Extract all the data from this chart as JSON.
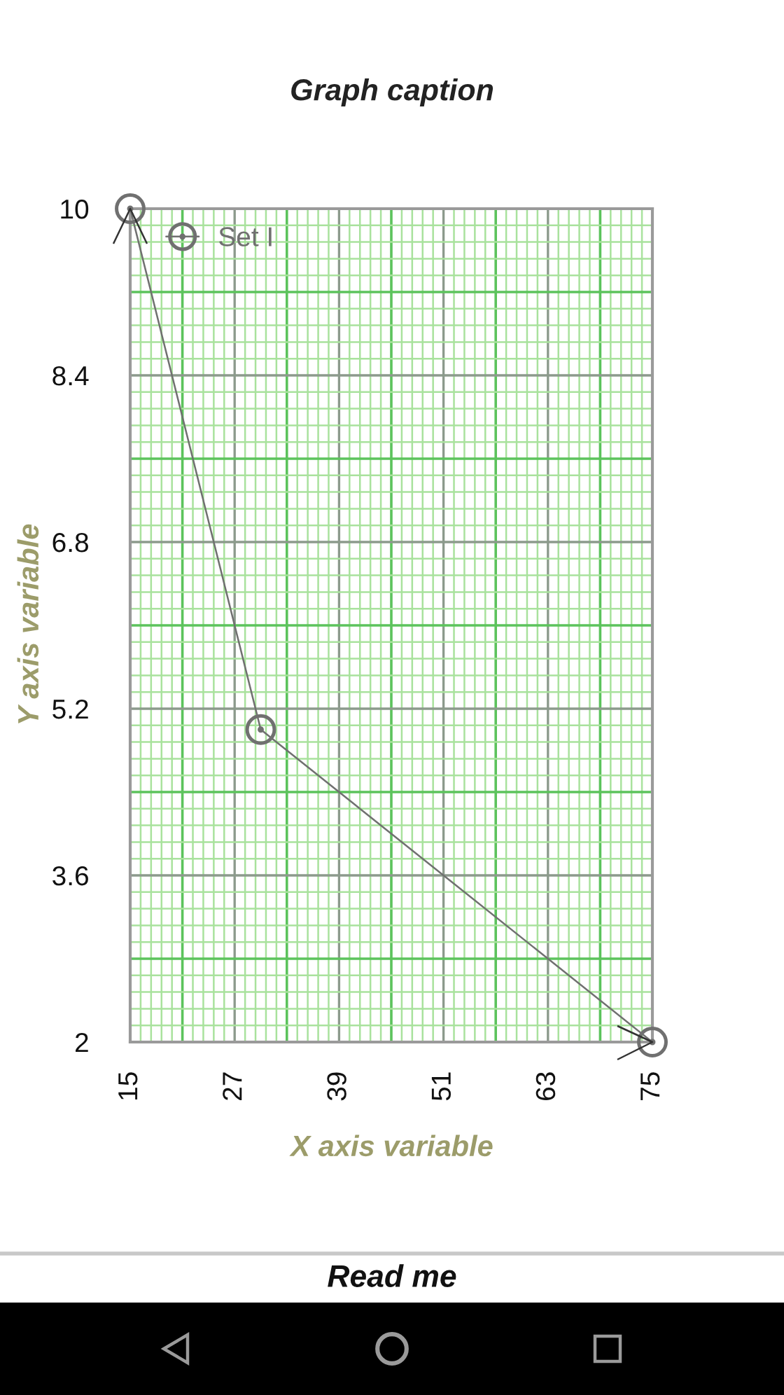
{
  "chart_data": {
    "type": "line",
    "title": "Graph caption",
    "xlabel": "X axis variable",
    "ylabel": "Y axis variable",
    "x": [
      15,
      30,
      75
    ],
    "series": [
      {
        "name": "Set I",
        "color": "#707070",
        "values": [
          10,
          5,
          2
        ]
      }
    ],
    "xlim": [
      15,
      75
    ],
    "ylim": [
      2,
      10
    ],
    "xticks": [
      15,
      {
        "value": 16.2,
        "label": null
      },
      {
        "value": 17.4,
        "label": null
      },
      {
        "value": 18.6,
        "label": null
      },
      {
        "value": 19.8,
        "label": null
      },
      {
        "value": 21,
        "label": null
      },
      {
        "value": 22.2,
        "label": null
      },
      {
        "value": 23.4,
        "label": null
      },
      {
        "value": 24.6,
        "label": null
      },
      {
        "value": 25.8,
        "label": null
      },
      27,
      {
        "value": 28.2,
        "label": null
      },
      {
        "value": 29.4,
        "label": null
      },
      {
        "value": 30.6,
        "label": null
      },
      {
        "value": 31.8,
        "label": null
      },
      {
        "value": 33,
        "label": null
      },
      {
        "value": 34.2,
        "label": null
      },
      {
        "value": 35.4,
        "label": null
      },
      {
        "value": 36.6,
        "label": null
      },
      {
        "value": 37.8,
        "label": null
      },
      39,
      {
        "value": 40.2,
        "label": null
      },
      {
        "value": 41.4,
        "label": null
      },
      {
        "value": 42.6,
        "label": null
      },
      {
        "value": 43.8,
        "label": null
      },
      {
        "value": 45,
        "label": null
      },
      {
        "value": 46.2,
        "label": null
      },
      {
        "value": 47.4,
        "label": null
      },
      {
        "value": 48.6,
        "label": null
      },
      {
        "value": 49.8,
        "label": null
      },
      51,
      {
        "value": 52.2,
        "label": null
      },
      {
        "value": 53.4,
        "label": null
      },
      {
        "value": 54.6,
        "label": null
      },
      {
        "value": 55.8,
        "label": null
      },
      {
        "value": 57,
        "label": null
      },
      {
        "value": 58.2,
        "label": null
      },
      {
        "value": 59.4,
        "label": null
      },
      {
        "value": 60.6,
        "label": null
      },
      {
        "value": 61.8,
        "label": null
      },
      63,
      {
        "value": 64.2,
        "label": null
      },
      {
        "value": 65.4,
        "label": null
      },
      {
        "value": 66.6,
        "label": null
      },
      {
        "value": 67.8,
        "label": null
      },
      {
        "value": 69,
        "label": null
      },
      {
        "value": 70.2,
        "label": null
      },
      {
        "value": 71.4,
        "label": null
      },
      {
        "value": 72.6,
        "label": null
      },
      {
        "value": 73.8,
        "label": null
      },
      75
    ],
    "yticks": [
      2,
      {
        "value": 2.16,
        "label": null
      },
      {
        "value": 2.32,
        "label": null
      },
      {
        "value": 2.48,
        "label": null
      },
      {
        "value": 2.64,
        "label": null
      },
      {
        "value": 2.8,
        "label": null
      },
      {
        "value": 2.96,
        "label": null
      },
      {
        "value": 3.12,
        "label": null
      },
      {
        "value": 3.28,
        "label": null
      },
      {
        "value": 3.44,
        "label": null
      },
      3.6,
      {
        "value": 3.76,
        "label": null
      },
      {
        "value": 3.92,
        "label": null
      },
      {
        "value": 4.08,
        "label": null
      },
      {
        "value": 4.24,
        "label": null
      },
      {
        "value": 4.4,
        "label": null
      },
      {
        "value": 4.56,
        "label": null
      },
      {
        "value": 4.72,
        "label": null
      },
      {
        "value": 4.88,
        "label": null
      },
      {
        "value": 5.04,
        "label": null
      },
      5.2,
      {
        "value": 5.36,
        "label": null
      },
      {
        "value": 5.52,
        "label": null
      },
      {
        "value": 5.68,
        "label": null
      },
      {
        "value": 5.84,
        "label": null
      },
      {
        "value": 6,
        "label": null
      },
      {
        "value": 6.16,
        "label": null
      },
      {
        "value": 6.32,
        "label": null
      },
      {
        "value": 6.48,
        "label": null
      },
      {
        "value": 6.64,
        "label": null
      },
      6.8,
      {
        "value": 6.96,
        "label": null
      },
      {
        "value": 7.12,
        "label": null
      },
      {
        "value": 7.28,
        "label": null
      },
      {
        "value": 7.44,
        "label": null
      },
      {
        "value": 7.6,
        "label": null
      },
      {
        "value": 7.76,
        "label": null
      },
      {
        "value": 7.92,
        "label": null
      },
      {
        "value": 8.08,
        "label": null
      },
      {
        "value": 8.24,
        "label": null
      },
      8.4,
      {
        "value": 8.56,
        "label": null
      },
      {
        "value": 8.72,
        "label": null
      },
      {
        "value": 8.88,
        "label": null
      },
      {
        "value": 9.04,
        "label": null
      },
      {
        "value": 9.2,
        "label": null
      },
      {
        "value": 9.36,
        "label": null
      },
      {
        "value": 9.52,
        "label": null
      },
      {
        "value": 9.68,
        "label": null
      },
      {
        "value": 9.84,
        "label": null
      },
      10
    ],
    "grid": true,
    "legend": "top left",
    "marker": "circle",
    "line_style": "solid",
    "annotations": [
      "Read me"
    ]
  }
}
